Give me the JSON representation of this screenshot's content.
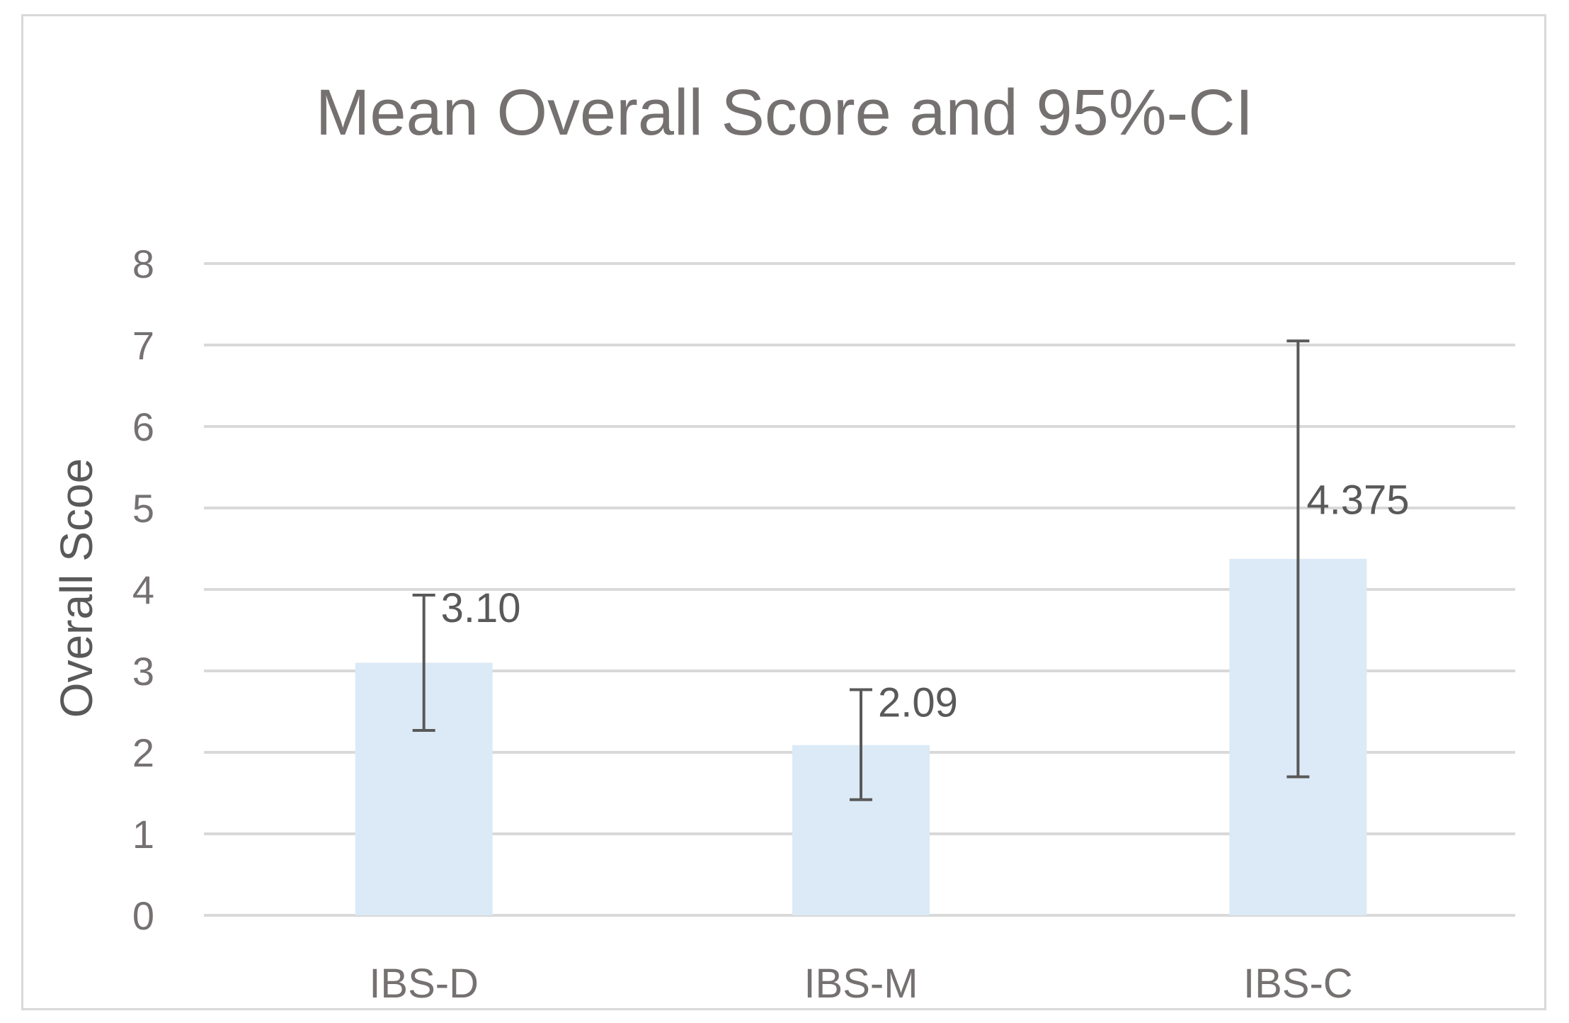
{
  "chart_data": {
    "type": "bar",
    "title": "Mean Overall Score and 95%-CI",
    "xlabel": "",
    "ylabel": "Overall Scoe",
    "ylim": [
      0,
      8
    ],
    "yticks": [
      0,
      1,
      2,
      3,
      4,
      5,
      6,
      7,
      8
    ],
    "grid": true,
    "legend": "none",
    "categories": [
      "IBS-D",
      "IBS-M",
      "IBS-C"
    ],
    "values": [
      3.1,
      2.09,
      4.375
    ],
    "data_labels": [
      "3.10",
      "2.09",
      "4.375"
    ],
    "ci_lower": [
      2.27,
      1.42,
      1.7
    ],
    "ci_upper": [
      3.93,
      2.77,
      7.05
    ],
    "colors": {
      "bar": "#dbeaf6",
      "error_bar": "#595959",
      "grid": "#d9d9d9",
      "text": "#767171"
    }
  }
}
